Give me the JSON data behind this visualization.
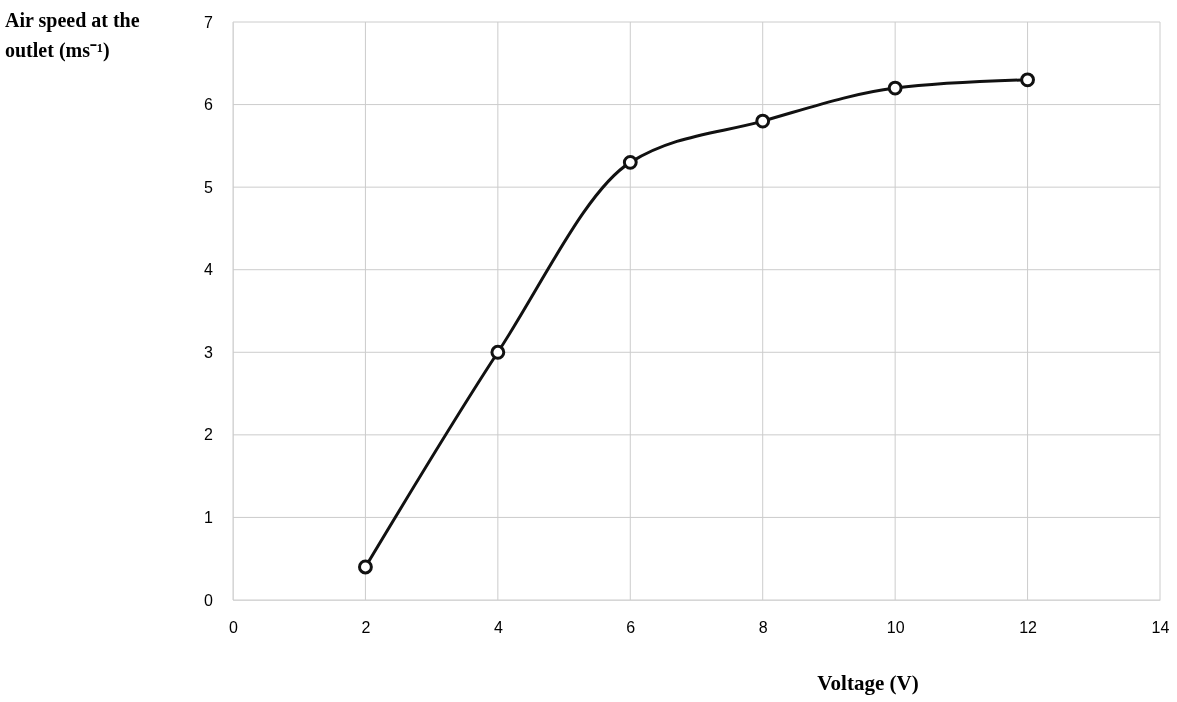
{
  "chart_data": {
    "type": "line",
    "xlabel": "Voltage (V)",
    "ylabel": "Air speed at the outlet (ms⁻¹)",
    "x": [
      2,
      4,
      6,
      8,
      10,
      12
    ],
    "series": [
      {
        "color": "#111111",
        "values": [
          0.4,
          3.0,
          5.3,
          5.8,
          6.2,
          6.3
        ]
      }
    ],
    "xlim": [
      0,
      14
    ],
    "xticks": [
      0,
      2,
      4,
      6,
      8,
      10,
      12,
      14
    ],
    "ylim": [
      0,
      7
    ],
    "yticks": [
      0,
      1,
      2,
      3,
      4,
      5,
      6,
      7
    ],
    "grid": true,
    "marker": "circle",
    "line_style": "solid"
  }
}
